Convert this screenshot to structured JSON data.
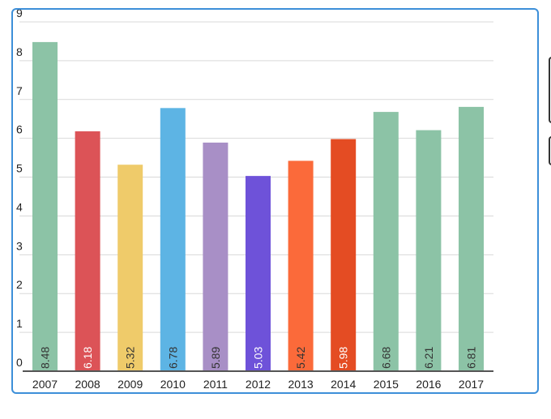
{
  "chart_data": {
    "type": "bar",
    "title": "",
    "xlabel": "",
    "ylabel": "",
    "ylim": [
      0,
      9
    ],
    "yticks": [
      0,
      1,
      2,
      3,
      4,
      5,
      6,
      7,
      8,
      9
    ],
    "grid": true,
    "legend": "none",
    "categories": [
      "2007",
      "2008",
      "2009",
      "2010",
      "2011",
      "2012",
      "2013",
      "2014",
      "2015",
      "2016",
      "2017"
    ],
    "values": [
      8.48,
      6.18,
      5.32,
      6.78,
      5.89,
      5.03,
      5.42,
      5.98,
      6.68,
      6.21,
      6.81
    ],
    "value_labels": [
      "8.48",
      "6.18",
      "5.32",
      "6.78",
      "5.89",
      "5.03",
      "5.42",
      "5.98",
      "6.68",
      "6.21",
      "6.81"
    ],
    "colors": [
      "#8cc3a6",
      "#dc5357",
      "#efcb6a",
      "#5db4e4",
      "#a88fc6",
      "#6e52d9",
      "#fb6a3a",
      "#e44c23",
      "#8cc3a6",
      "#8cc3a6",
      "#8cc3a6"
    ],
    "label_colors": [
      "#333333",
      "#ffffff",
      "#333333",
      "#333333",
      "#333333",
      "#ffffff",
      "#333333",
      "#ffffff",
      "#333333",
      "#333333",
      "#333333"
    ]
  },
  "panel": {
    "border_color": "#3d8fd9",
    "grid_color": "#d9d9d9",
    "axis_color": "#555555"
  }
}
